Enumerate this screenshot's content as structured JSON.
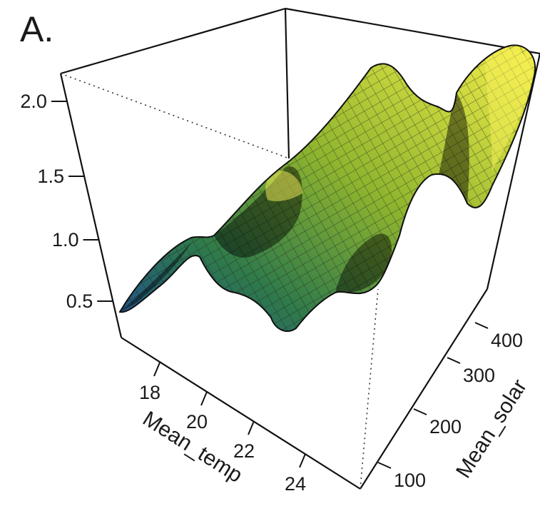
{
  "panel_label": "A.",
  "chart_data": {
    "type": "surface3d",
    "title": "",
    "xlabel": "Mean_temp",
    "ylabel": "Mean_solar",
    "zlabel": "",
    "x_ticks": [
      "18",
      "20",
      "22",
      "24"
    ],
    "y_ticks": [
      "100",
      "200",
      "300",
      "400"
    ],
    "z_ticks": [
      "0.5",
      "1.0",
      "1.5",
      "2.0"
    ],
    "xlim": [
      16.8,
      25.5
    ],
    "ylim": [
      60,
      470
    ],
    "zlim": [
      0.33,
      2.2
    ],
    "grid": false,
    "surface_color_range": [
      "#1f4f8a",
      "#f5ef4a"
    ],
    "surface_samples": [
      {
        "x": 16.8,
        "y": 100,
        "z": 0.38
      },
      {
        "x": 17.5,
        "y": 200,
        "z": 0.55
      },
      {
        "x": 18.0,
        "y": 300,
        "z": 0.8
      },
      {
        "x": 18.5,
        "y": 400,
        "z": 0.92
      },
      {
        "x": 19.0,
        "y": 150,
        "z": 0.95
      },
      {
        "x": 19.5,
        "y": 300,
        "z": 1.0
      },
      {
        "x": 20.0,
        "y": 250,
        "z": 1.2
      },
      {
        "x": 20.5,
        "y": 350,
        "z": 1.45
      },
      {
        "x": 21.0,
        "y": 150,
        "z": 1.3
      },
      {
        "x": 21.5,
        "y": 300,
        "z": 1.9
      },
      {
        "x": 22.0,
        "y": 420,
        "z": 2.0
      },
      {
        "x": 22.5,
        "y": 200,
        "z": 1.25
      },
      {
        "x": 23.0,
        "y": 350,
        "z": 1.4
      },
      {
        "x": 23.5,
        "y": 100,
        "z": 0.7
      },
      {
        "x": 24.0,
        "y": 250,
        "z": 0.85
      },
      {
        "x": 24.5,
        "y": 450,
        "z": 2.2
      },
      {
        "x": 25.0,
        "y": 150,
        "z": 0.75
      },
      {
        "x": 25.5,
        "y": 400,
        "z": 1.5
      }
    ]
  }
}
